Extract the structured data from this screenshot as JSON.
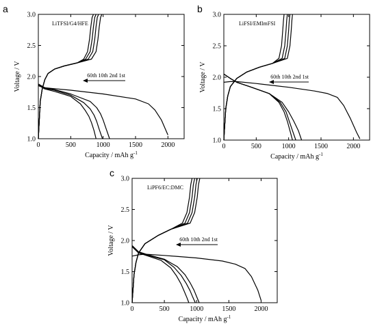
{
  "chart_data": [
    {
      "panel": "a",
      "type": "line",
      "annotation": "LiTFSI/G4/HFE",
      "cycle_labels": "60th 10th 2nd 1st",
      "xlabel": "Capacity / mAh g",
      "xlabel_sup": "-1",
      "ylabel": "Voltage / V",
      "xlim": [
        0,
        2250
      ],
      "ylim": [
        1.0,
        3.0
      ],
      "xticks": [
        0,
        500,
        1000,
        1500,
        2000
      ],
      "yticks": [
        1.0,
        1.5,
        2.0,
        2.5,
        3.0
      ],
      "grid": false,
      "series": [
        {
          "x": [
            0,
            100,
            250,
            500,
            800,
            900,
            960,
            1000,
            1050,
            1100
          ],
          "y": [
            1.88,
            1.82,
            1.79,
            1.72,
            1.6,
            1.5,
            1.4,
            1.3,
            1.15,
            1.0
          ]
        },
        {
          "x": [
            0,
            100,
            250,
            500,
            700,
            800,
            860,
            900,
            940,
            990
          ],
          "y": [
            1.87,
            1.81,
            1.78,
            1.7,
            1.58,
            1.48,
            1.38,
            1.28,
            1.15,
            1.0
          ]
        },
        {
          "x": [
            0,
            100,
            250,
            500,
            650,
            720,
            780,
            820,
            860,
            890
          ],
          "y": [
            1.86,
            1.8,
            1.76,
            1.68,
            1.56,
            1.46,
            1.36,
            1.26,
            1.13,
            1.0
          ]
        },
        {
          "x": [
            0,
            100,
            200,
            500,
            1000,
            1500,
            1700,
            1800,
            1900,
            1950,
            2000
          ],
          "y": [
            1.85,
            1.82,
            1.81,
            1.78,
            1.72,
            1.64,
            1.56,
            1.46,
            1.3,
            1.18,
            1.06
          ]
        },
        {
          "x": [
            0,
            30,
            60,
            100,
            150,
            250,
            400,
            600,
            700,
            760,
            790,
            810,
            830,
            850
          ],
          "y": [
            1.0,
            1.6,
            1.8,
            1.95,
            2.05,
            2.12,
            2.17,
            2.22,
            2.28,
            2.4,
            2.6,
            2.8,
            2.95,
            3.0
          ]
        },
        {
          "x": [
            0,
            30,
            60,
            100,
            150,
            250,
            400,
            600,
            730,
            800,
            830,
            850,
            870,
            890
          ],
          "y": [
            1.0,
            1.6,
            1.8,
            1.95,
            2.05,
            2.12,
            2.17,
            2.22,
            2.28,
            2.4,
            2.6,
            2.8,
            2.95,
            3.0
          ]
        },
        {
          "x": [
            0,
            30,
            60,
            100,
            150,
            250,
            400,
            600,
            770,
            840,
            870,
            890,
            910,
            930
          ],
          "y": [
            1.0,
            1.6,
            1.8,
            1.95,
            2.05,
            2.12,
            2.17,
            2.22,
            2.28,
            2.4,
            2.6,
            2.8,
            2.95,
            3.0
          ]
        },
        {
          "x": [
            0,
            30,
            60,
            100,
            150,
            250,
            400,
            600,
            820,
            890,
            920,
            940,
            960,
            980
          ],
          "y": [
            1.0,
            1.6,
            1.8,
            1.95,
            2.05,
            2.12,
            2.17,
            2.22,
            2.28,
            2.4,
            2.6,
            2.8,
            2.95,
            3.0
          ]
        }
      ]
    },
    {
      "panel": "b",
      "type": "line",
      "annotation": "LiFSI/EMImFSI",
      "cycle_labels": "60th 10th 2nd 1st",
      "xlabel": "Capacity / mAh g",
      "xlabel_sup": "-1",
      "ylabel": "Voltage / V",
      "xlim": [
        0,
        2250
      ],
      "ylim": [
        1.0,
        3.0
      ],
      "xticks": [
        0,
        500,
        1000,
        1500,
        2000
      ],
      "yticks": [
        1.0,
        1.5,
        2.0,
        2.5,
        3.0
      ],
      "grid": false,
      "series": [
        {
          "x": [
            0,
            100,
            200,
            400,
            700,
            850,
            930,
            980,
            1020,
            1060
          ],
          "y": [
            2.05,
            1.98,
            1.92,
            1.85,
            1.74,
            1.6,
            1.45,
            1.3,
            1.15,
            1.0
          ]
        },
        {
          "x": [
            0,
            100,
            200,
            400,
            700,
            870,
            960,
            1010,
            1060,
            1110
          ],
          "y": [
            2.05,
            1.98,
            1.92,
            1.85,
            1.74,
            1.6,
            1.45,
            1.3,
            1.15,
            1.0
          ]
        },
        {
          "x": [
            0,
            100,
            200,
            400,
            700,
            900,
            1000,
            1080,
            1150,
            1200
          ],
          "y": [
            2.05,
            1.98,
            1.92,
            1.85,
            1.74,
            1.6,
            1.45,
            1.3,
            1.15,
            1.0
          ]
        },
        {
          "x": [
            0,
            100,
            200,
            500,
            1000,
            1400,
            1600,
            1750,
            1850,
            1950,
            2050,
            2100
          ],
          "y": [
            1.92,
            1.93,
            1.93,
            1.9,
            1.84,
            1.78,
            1.74,
            1.68,
            1.55,
            1.35,
            1.12,
            1.02
          ]
        },
        {
          "x": [
            0,
            30,
            60,
            100,
            200,
            350,
            550,
            750,
            850,
            890,
            910,
            920,
            930
          ],
          "y": [
            1.0,
            1.5,
            1.7,
            1.85,
            1.98,
            2.08,
            2.16,
            2.22,
            2.3,
            2.5,
            2.75,
            2.9,
            3.0
          ]
        },
        {
          "x": [
            0,
            30,
            60,
            100,
            200,
            350,
            550,
            750,
            900,
            940,
            960,
            970,
            980
          ],
          "y": [
            1.0,
            1.5,
            1.7,
            1.85,
            1.98,
            2.08,
            2.16,
            2.22,
            2.3,
            2.5,
            2.75,
            2.9,
            3.0
          ]
        },
        {
          "x": [
            0,
            30,
            60,
            100,
            200,
            350,
            550,
            750,
            940,
            980,
            1000,
            1010,
            1020
          ],
          "y": [
            1.0,
            1.5,
            1.7,
            1.85,
            1.98,
            2.08,
            2.16,
            2.22,
            2.3,
            2.5,
            2.75,
            2.9,
            3.0
          ]
        },
        {
          "x": [
            0,
            30,
            60,
            100,
            200,
            350,
            550,
            750,
            980,
            1020,
            1040,
            1050,
            1060
          ],
          "y": [
            1.0,
            1.5,
            1.7,
            1.85,
            1.98,
            2.08,
            2.16,
            2.22,
            2.3,
            2.5,
            2.75,
            2.9,
            3.0
          ]
        }
      ]
    },
    {
      "panel": "c",
      "type": "line",
      "annotation": "LiPF6/EC:DMC",
      "cycle_labels": "60th 10th 2nd 1st",
      "xlabel": "Capacity / mAh g",
      "xlabel_sup": "-1",
      "ylabel": "Voltage / V",
      "xlim": [
        0,
        2250
      ],
      "ylim": [
        1.0,
        3.0
      ],
      "xticks": [
        0,
        500,
        1000,
        1500,
        2000
      ],
      "yticks": [
        1.0,
        1.5,
        2.0,
        2.5,
        3.0
      ],
      "grid": false,
      "series": [
        {
          "x": [
            0,
            100,
            250,
            500,
            700,
            820,
            900,
            960,
            1000,
            1040
          ],
          "y": [
            1.92,
            1.82,
            1.77,
            1.7,
            1.58,
            1.45,
            1.32,
            1.2,
            1.1,
            1.0
          ]
        },
        {
          "x": [
            0,
            100,
            250,
            500,
            650,
            760,
            840,
            900,
            940,
            980
          ],
          "y": [
            1.91,
            1.81,
            1.76,
            1.69,
            1.57,
            1.44,
            1.31,
            1.19,
            1.09,
            1.0
          ]
        },
        {
          "x": [
            0,
            100,
            250,
            450,
            600,
            690,
            760,
            810,
            850,
            880
          ],
          "y": [
            1.9,
            1.8,
            1.75,
            1.68,
            1.56,
            1.43,
            1.3,
            1.18,
            1.08,
            1.0
          ]
        },
        {
          "x": [
            0,
            100,
            200,
            500,
            1000,
            1400,
            1600,
            1750,
            1850,
            1950,
            2000
          ],
          "y": [
            1.75,
            1.77,
            1.78,
            1.76,
            1.72,
            1.67,
            1.62,
            1.55,
            1.42,
            1.2,
            1.04
          ]
        },
        {
          "x": [
            0,
            30,
            60,
            100,
            200,
            400,
            600,
            780,
            850,
            890,
            910,
            930
          ],
          "y": [
            1.0,
            1.45,
            1.65,
            1.8,
            1.95,
            2.08,
            2.18,
            2.28,
            2.45,
            2.7,
            2.9,
            3.0
          ]
        },
        {
          "x": [
            0,
            30,
            60,
            100,
            200,
            400,
            600,
            820,
            890,
            930,
            950,
            970
          ],
          "y": [
            1.0,
            1.45,
            1.65,
            1.8,
            1.95,
            2.08,
            2.18,
            2.28,
            2.45,
            2.7,
            2.9,
            3.0
          ]
        },
        {
          "x": [
            0,
            30,
            60,
            100,
            200,
            400,
            600,
            860,
            930,
            970,
            990,
            1010
          ],
          "y": [
            1.0,
            1.45,
            1.65,
            1.8,
            1.95,
            2.08,
            2.18,
            2.28,
            2.45,
            2.7,
            2.9,
            3.0
          ]
        },
        {
          "x": [
            0,
            30,
            60,
            100,
            200,
            400,
            600,
            900,
            970,
            1010,
            1030,
            1050
          ],
          "y": [
            1.0,
            1.45,
            1.65,
            1.8,
            1.95,
            2.08,
            2.18,
            2.28,
            2.45,
            2.7,
            2.9,
            3.0
          ]
        }
      ]
    }
  ]
}
